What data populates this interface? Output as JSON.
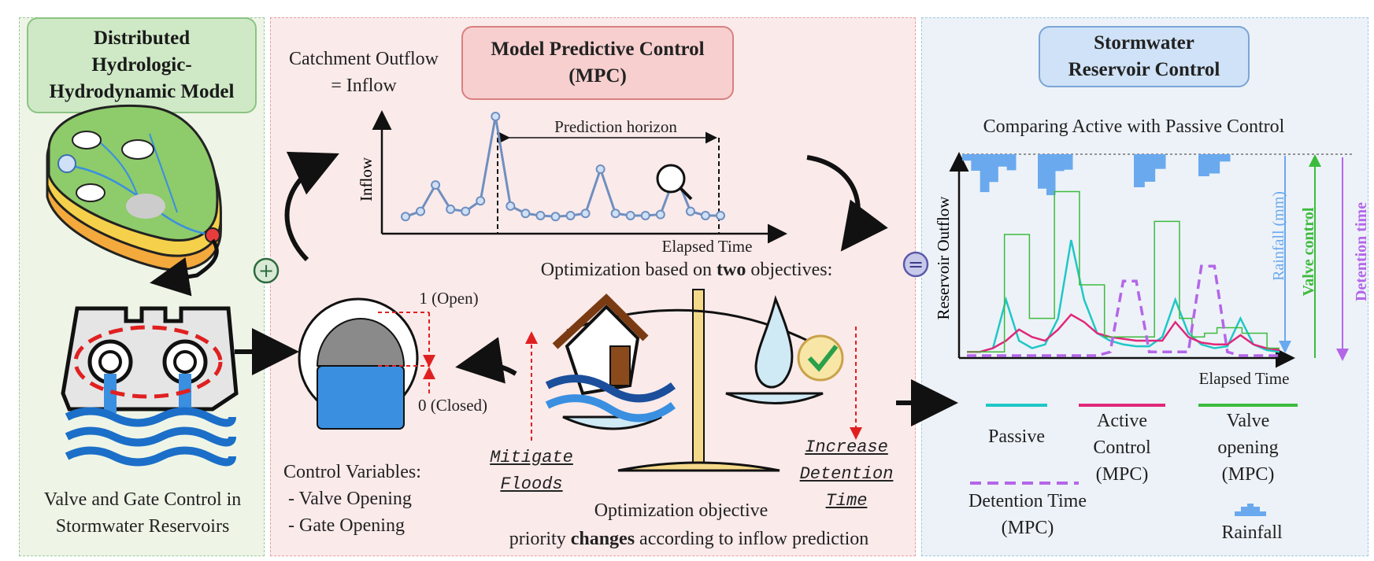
{
  "panels": {
    "left": {
      "title": "Distributed\nHydrologic-\nHydrodynamic Model",
      "caption": "Valve and Gate Control in\nStormwater Reservoirs",
      "plus_symbol": "+"
    },
    "middle": {
      "title": "Model Predictive Control\n(MPC)",
      "catchment_label": "Catchment Outflow\n= Inflow",
      "inflow_axis_label": "Inflow",
      "elapsed_time_label": "Elapsed Time",
      "prediction_horizon_label": "Prediction horizon",
      "optimization_prefix": "Optimization based on ",
      "optimization_bold": "two",
      "optimization_suffix": " objectives:",
      "valve_open_label": "1 (Open)",
      "valve_closed_label": "0 (Closed)",
      "control_variables": "Control Variables:\n - Valve Opening\n - Gate Opening",
      "mitigate_floods": "Mitigate\nFloods",
      "increase_detention": "Increase\nDetention\nTime",
      "objective_line1": "Optimization objective",
      "objective_line2_prefix": "priority ",
      "objective_line2_bold": "changes",
      "objective_line2_suffix": " according to inflow prediction"
    },
    "right": {
      "title": "Stormwater\nReservoir Control",
      "equals_symbol": "=",
      "chart_title": "Comparing Active with Passive Control",
      "y_axis_label": "Reservoir Outflow",
      "x_axis_label": "Elapsed Time",
      "rainfall_axis_label": "Rainfall (mm)",
      "valve_control_axis_label": "Valve control",
      "detention_time_axis_label": "Detention time",
      "legend": {
        "passive": "Passive",
        "active": "Active\nControl\n(MPC)",
        "valve": "Valve\nopening\n(MPC)",
        "detention": "Detention Time\n(MPC)",
        "rainfall": "Rainfall"
      }
    }
  },
  "colors": {
    "passive": "#1fc7c7",
    "active": "#e0287a",
    "valve": "#3dbb3d",
    "detention": "#b466e8",
    "rainfall": "#6aa9ee",
    "inflow_line": "#6f8fbf"
  },
  "chart_data": [
    {
      "type": "line",
      "title": "",
      "ylabel": "Inflow",
      "xlabel": "Elapsed Time",
      "series": [
        {
          "values": [
            0.05,
            0.1,
            0.35,
            0.12,
            0.1,
            0.2,
            1.0,
            0.15,
            0.08,
            0.06,
            0.05,
            0.06,
            0.08,
            0.5,
            0.08,
            0.06,
            0.06,
            0.07,
            0.45,
            0.1,
            0.06,
            0.06
          ]
        }
      ]
    },
    {
      "type": "line",
      "title": "Comparing Active with Passive Control",
      "ylabel": "Reservoir Outflow",
      "xlabel": "Elapsed Time",
      "series": [
        {
          "name": "Passive",
          "values": [
            0.02,
            0.02,
            0.04,
            0.3,
            0.08,
            0.04,
            0.06,
            0.2,
            0.62,
            0.3,
            0.12,
            0.08,
            0.06,
            0.05,
            0.05,
            0.1,
            0.3,
            0.12,
            0.06,
            0.04,
            0.05,
            0.2,
            0.06,
            0.03,
            0.02
          ]
        },
        {
          "name": "Active Control (MPC)",
          "values": [
            0.02,
            0.02,
            0.04,
            0.08,
            0.14,
            0.1,
            0.08,
            0.14,
            0.22,
            0.18,
            0.12,
            0.1,
            0.09,
            0.08,
            0.08,
            0.08,
            0.18,
            0.1,
            0.07,
            0.06,
            0.06,
            0.11,
            0.06,
            0.04,
            0.03
          ]
        },
        {
          "name": "Valve opening (MPC)",
          "values": [
            0.02,
            0.02,
            0.02,
            0.65,
            0.65,
            0.2,
            0.2,
            0.88,
            0.88,
            0.38,
            0.38,
            0.1,
            0.1,
            0.1,
            0.1,
            0.72,
            0.72,
            0.2,
            0.1,
            0.12,
            0.15,
            0.15,
            0.12,
            0.12,
            0.04
          ]
        },
        {
          "name": "Detention Time (MPC)",
          "values": [
            0.0,
            0.0,
            0.0,
            0.0,
            0.0,
            0.0,
            0.0,
            0.0,
            0.0,
            0.0,
            0.0,
            0.02,
            0.4,
            0.4,
            0.02,
            0.02,
            0.02,
            0.02,
            0.48,
            0.48,
            0.02,
            0.0,
            0.0,
            0.0,
            0.0
          ]
        }
      ],
      "rainfall_bars": [
        0.2,
        0.4,
        0.75,
        0.55,
        0.3,
        0.5,
        1.0,
        0.85,
        0.35,
        0.45,
        0.9,
        0.5,
        0.4,
        0.6,
        0.35
      ]
    }
  ]
}
